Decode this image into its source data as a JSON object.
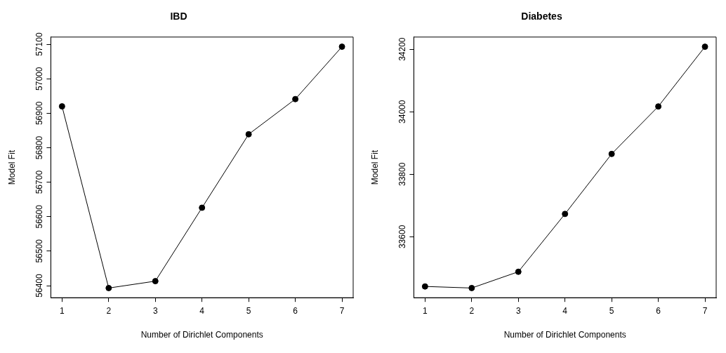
{
  "chart_data": [
    {
      "type": "line",
      "title": "IBD",
      "xlabel": "Number of Dirichlet Components",
      "ylabel": "Model Fit",
      "x": [
        1,
        2,
        3,
        4,
        5,
        6,
        7
      ],
      "values": [
        56920,
        56393,
        56413,
        56626,
        56839,
        56941,
        57093
      ],
      "color": "#000000",
      "marker": "circle",
      "line_style": "solid",
      "grid": false,
      "xlim": [
        0.76,
        7.24
      ],
      "ylim": [
        56365,
        57121
      ],
      "xticks": [
        1,
        2,
        3,
        4,
        5,
        6,
        7
      ],
      "yticks": [
        56400,
        56500,
        56600,
        56700,
        56800,
        56900,
        57000,
        57100
      ]
    },
    {
      "type": "line",
      "title": "Diabetes",
      "xlabel": "Number of Dirichlet Components",
      "ylabel": "Model Fit",
      "x": [
        1,
        2,
        3,
        4,
        5,
        6,
        7
      ],
      "values": [
        33441,
        33436,
        33488,
        33673,
        33865,
        34017,
        34208
      ],
      "color": "#000000",
      "marker": "circle",
      "line_style": "solid",
      "grid": false,
      "xlim": [
        0.76,
        7.24
      ],
      "ylim": [
        33405,
        34239
      ],
      "xticks": [
        1,
        2,
        3,
        4,
        5,
        6,
        7
      ],
      "yticks": [
        33600,
        33800,
        34000,
        34200
      ]
    }
  ]
}
